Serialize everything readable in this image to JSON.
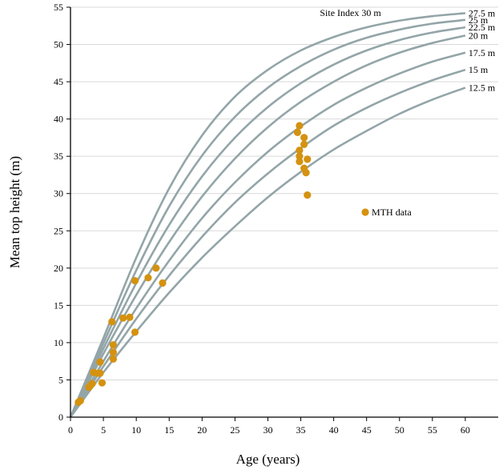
{
  "chart_data": {
    "type": "line",
    "title": "",
    "xlabel": "Age (years)",
    "ylabel": "Mean top height (m)",
    "xlim": [
      0,
      65
    ],
    "ylim": [
      0,
      55
    ],
    "xticks": [
      0,
      5,
      10,
      15,
      20,
      25,
      30,
      35,
      40,
      45,
      50,
      55,
      60
    ],
    "yticks": [
      0,
      5,
      10,
      15,
      20,
      25,
      30,
      35,
      40,
      45,
      50,
      55
    ],
    "grid": "horizontal",
    "annotation": "Site Index 30 m",
    "series": [
      {
        "name": "27.5 m",
        "x": [
          0,
          5,
          10,
          15,
          20,
          25,
          30,
          35,
          40,
          45,
          50,
          55,
          60
        ],
        "y": [
          0,
          10.6,
          21.4,
          30.7,
          37.8,
          43.0,
          46.6,
          49.2,
          51.0,
          52.3,
          53.2,
          53.8,
          54.2
        ]
      },
      {
        "name": "25 m",
        "x": [
          0,
          5,
          10,
          15,
          20,
          25,
          30,
          35,
          40,
          45,
          50,
          55,
          60
        ],
        "y": [
          0,
          9.9,
          19.7,
          28.3,
          35.1,
          40.3,
          44.2,
          47.1,
          49.3,
          50.9,
          52.0,
          52.8,
          53.3
        ]
      },
      {
        "name": "22.5 m",
        "x": [
          0,
          5,
          10,
          15,
          20,
          25,
          30,
          35,
          40,
          45,
          50,
          55,
          60
        ],
        "y": [
          0,
          9.2,
          18.0,
          25.8,
          32.3,
          37.5,
          41.6,
          44.8,
          47.3,
          49.2,
          50.6,
          51.6,
          52.3
        ]
      },
      {
        "name": "20 m",
        "x": [
          0,
          5,
          10,
          15,
          20,
          25,
          30,
          35,
          40,
          45,
          50,
          55,
          60
        ],
        "y": [
          0,
          8.5,
          16.4,
          23.5,
          29.6,
          34.7,
          38.9,
          42.3,
          45.0,
          47.2,
          48.9,
          50.2,
          51.2
        ]
      },
      {
        "name": "17.5 m",
        "x": [
          0,
          5,
          10,
          15,
          20,
          25,
          30,
          35,
          40,
          45,
          50,
          55,
          60
        ],
        "y": [
          0,
          7.5,
          14.6,
          21.0,
          26.7,
          31.5,
          35.6,
          39.0,
          41.9,
          44.2,
          46.1,
          47.7,
          48.9
        ]
      },
      {
        "name": "15 m",
        "x": [
          0,
          5,
          10,
          15,
          20,
          25,
          30,
          35,
          40,
          45,
          50,
          55,
          60
        ],
        "y": [
          0,
          6.8,
          13.2,
          19.0,
          24.2,
          28.8,
          32.7,
          36.1,
          39.1,
          41.5,
          43.5,
          45.2,
          46.6
        ]
      },
      {
        "name": "12.5 m",
        "x": [
          0,
          5,
          10,
          15,
          20,
          25,
          30,
          35,
          40,
          45,
          50,
          55,
          60
        ],
        "y": [
          0,
          6.0,
          11.5,
          16.7,
          21.4,
          25.6,
          29.5,
          32.9,
          35.9,
          38.4,
          40.7,
          42.6,
          44.2
        ]
      }
    ],
    "scatter": {
      "name": "MTH data",
      "color": "#d4920f",
      "points": [
        [
          1.2,
          2.0
        ],
        [
          1.5,
          2.2
        ],
        [
          2.8,
          4.0
        ],
        [
          3.0,
          4.2
        ],
        [
          3.3,
          4.5
        ],
        [
          3.5,
          6.0
        ],
        [
          4.2,
          5.9
        ],
        [
          4.5,
          7.4
        ],
        [
          4.8,
          4.6
        ],
        [
          4.5,
          5.9
        ],
        [
          6.3,
          12.8
        ],
        [
          6.5,
          9.7
        ],
        [
          6.5,
          8.7
        ],
        [
          6.5,
          7.8
        ],
        [
          8.0,
          13.3
        ],
        [
          9.0,
          13.4
        ],
        [
          9.8,
          18.3
        ],
        [
          9.8,
          11.4
        ],
        [
          11.8,
          18.7
        ],
        [
          13.0,
          20.0
        ],
        [
          14.0,
          18.0
        ],
        [
          34.8,
          39.1
        ],
        [
          35.5,
          37.5
        ],
        [
          34.5,
          38.2
        ],
        [
          35.5,
          36.6
        ],
        [
          34.8,
          35.8
        ],
        [
          34.8,
          35.0
        ],
        [
          34.8,
          34.3
        ],
        [
          36.0,
          34.6
        ],
        [
          35.5,
          33.4
        ],
        [
          35.8,
          32.8
        ],
        [
          36.0,
          29.8
        ]
      ]
    },
    "colors": {
      "curves": "#93a5a8",
      "points": "#d4920f",
      "grid": "#d9d9d9"
    }
  }
}
